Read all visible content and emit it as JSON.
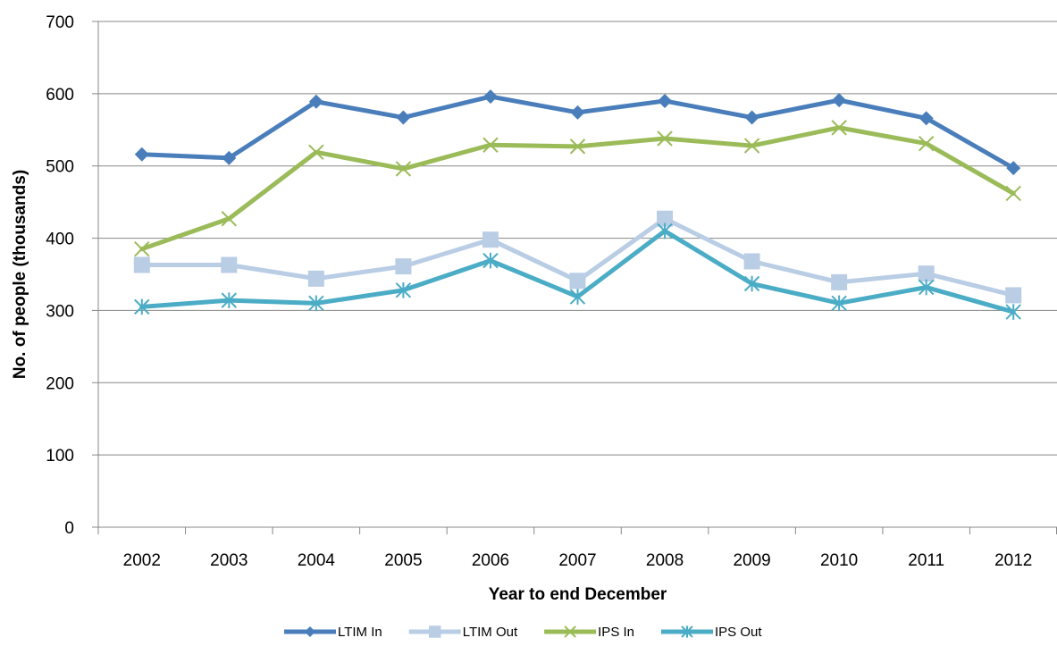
{
  "chart_data": {
    "type": "line",
    "title": "",
    "xlabel": "Year to end December",
    "ylabel": "No. of people (thousands)",
    "ylim": [
      0,
      700
    ],
    "yticks": [
      0,
      100,
      200,
      300,
      400,
      500,
      600,
      700
    ],
    "y_tick_labels": [
      "0",
      "100",
      "200",
      "300",
      "400",
      "500",
      "600",
      "700"
    ],
    "categories": [
      "2002",
      "2003",
      "2004",
      "2005",
      "2006",
      "2007",
      "2008",
      "2009",
      "2010",
      "2011",
      "2012"
    ],
    "grid": "horizontal",
    "legend_position": "bottom",
    "series": [
      {
        "name": "LTIM In",
        "color": "#4a7ebb",
        "marker": "diamond",
        "values": [
          516,
          511,
          589,
          567,
          596,
          574,
          590,
          567,
          591,
          566,
          497
        ]
      },
      {
        "name": "LTIM Out",
        "color": "#b9cde5",
        "marker": "square",
        "values": [
          363,
          363,
          344,
          361,
          398,
          341,
          427,
          368,
          339,
          351,
          321
        ]
      },
      {
        "name": "IPS In",
        "color": "#9bbb59",
        "marker": "x",
        "values": [
          385,
          427,
          519,
          496,
          529,
          527,
          538,
          528,
          553,
          531,
          462
        ]
      },
      {
        "name": "IPS Out",
        "color": "#4bacc6",
        "marker": "asterisk",
        "values": [
          305,
          314,
          310,
          328,
          369,
          319,
          410,
          337,
          310,
          332,
          298
        ]
      }
    ]
  }
}
